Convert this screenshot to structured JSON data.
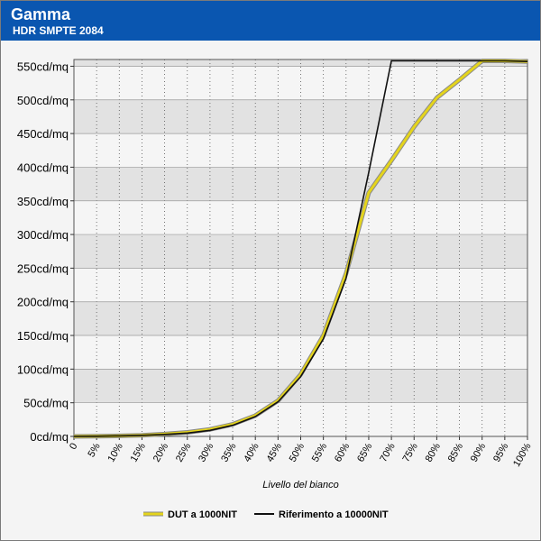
{
  "header": {
    "title": "Gamma",
    "subtitle": "HDR SMPTE 2084"
  },
  "colors": {
    "header_bg": "#0a56b0",
    "plot_band": "#e2e2e2",
    "plot_band_alt": "#f5f5f5",
    "dut_line": "#e4d41c",
    "dut_line_outline": "#8a8a8a",
    "reference_line": "#111111"
  },
  "chart_data": {
    "type": "line",
    "xlabel": "Livello del bianco",
    "ylabel": "",
    "x_tick_labels": [
      "0",
      "5%",
      "10%",
      "15%",
      "20%",
      "25%",
      "30%",
      "35%",
      "40%",
      "45%",
      "50%",
      "55%",
      "60%",
      "65%",
      "70%",
      "75%",
      "80%",
      "85%",
      "90%",
      "95%",
      "100%"
    ],
    "y_tick_labels": [
      "0cd/mq",
      "50cd/mq",
      "100cd/mq",
      "150cd/mq",
      "200cd/mq",
      "250cd/mq",
      "300cd/mq",
      "350cd/mq",
      "400cd/mq",
      "450cd/mq",
      "500cd/mq",
      "550cd/mq"
    ],
    "xlim": [
      0,
      100
    ],
    "ylim": [
      0,
      560
    ],
    "grid": true,
    "legend_position": "bottom",
    "series": [
      {
        "name": "DUT a 1000NIT",
        "color": "#e4d41c",
        "x": [
          0,
          5,
          10,
          15,
          20,
          25,
          30,
          35,
          40,
          45,
          50,
          55,
          60,
          65,
          70,
          75,
          80,
          85,
          90,
          95,
          100
        ],
        "y": [
          0,
          0.3,
          0.8,
          1.8,
          3.5,
          6,
          10.5,
          18,
          31,
          53,
          92,
          150,
          242,
          362,
          410,
          460,
          503,
          530,
          558,
          558,
          557
        ]
      },
      {
        "name": "Riferimento a 10000NIT",
        "color": "#111111",
        "x": [
          0,
          5,
          10,
          15,
          20,
          25,
          30,
          35,
          40,
          45,
          50,
          55,
          60,
          65,
          70,
          75,
          80,
          85,
          90,
          95,
          100
        ],
        "y": [
          0,
          0.3,
          0.8,
          1.6,
          3,
          5,
          9,
          16.5,
          29.5,
          51.5,
          89,
          145,
          235,
          392,
          558,
          558,
          558,
          558,
          558,
          558,
          557
        ]
      }
    ]
  }
}
